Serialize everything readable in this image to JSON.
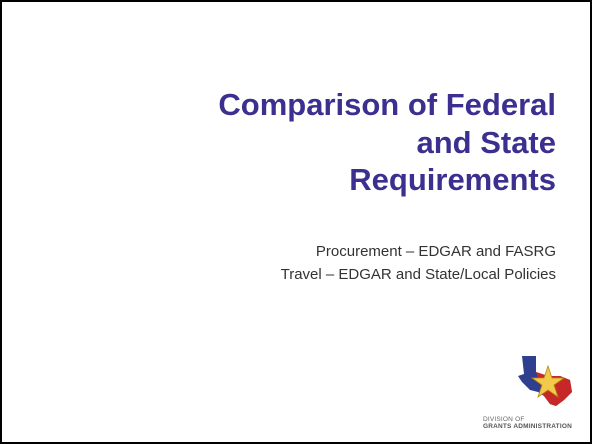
{
  "slide": {
    "title_lines": [
      "Comparison of Federal",
      "and State",
      "Requirements"
    ],
    "subtitle_lines": [
      "Procurement – EDGAR and FASRG",
      "Travel – EDGAR and State/Local Policies"
    ],
    "logo": {
      "line1": "DIVISION OF",
      "line2": "GRANTS ADMINISTRATION"
    }
  }
}
